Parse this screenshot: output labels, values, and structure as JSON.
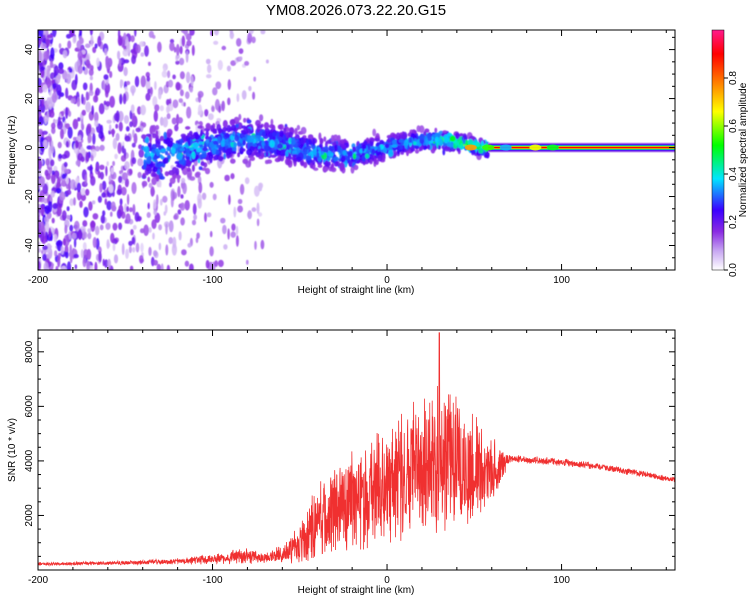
{
  "figure_title": "YM08.2026.073.22.20.G15",
  "chart_data": [
    {
      "type": "heatmap",
      "title": "YM08.2026.073.22.20.G15",
      "xlabel": "Height of straight line (km)",
      "ylabel": "Frequency (Hz)",
      "xlim": [
        -200,
        165
      ],
      "ylim": [
        -50,
        48
      ],
      "x_ticks": [
        -200,
        -100,
        0,
        100
      ],
      "x_tick_labels": [
        "-200",
        "-100",
        "0",
        "100"
      ],
      "y_ticks": [
        -40,
        -20,
        0,
        20,
        40
      ],
      "y_tick_labels": [
        "-40",
        "-20",
        "0",
        "20",
        "40"
      ],
      "colorbar": {
        "label": "Normalized spectral amplitude",
        "range": [
          0.0,
          1.0
        ],
        "ticks": [
          0.0,
          0.2,
          0.4,
          0.6,
          0.8
        ],
        "tick_labels": [
          "0.0",
          "0.2",
          "0.4",
          "0.6",
          "0.8"
        ],
        "colors": [
          "#ffffff",
          "#c7a6f2",
          "#8a2be2",
          "#3b00ff",
          "#00e5ff",
          "#00ff00",
          "#ffff00",
          "#ff7f00",
          "#ff0000",
          "#ff1a8c"
        ]
      },
      "features": {
        "noise_region_x": [
          -200,
          -68
        ],
        "signal_band_x": [
          -140,
          58
        ],
        "signal_band_halfwidth_hz": [
          4,
          15
        ],
        "carrier_x": [
          58,
          165
        ],
        "carrier_frequency_hz": 0,
        "carrier_amplitude": 0.9
      }
    },
    {
      "type": "line",
      "title": "",
      "xlabel": "Height of straight line (km)",
      "ylabel": "SNR (10 * v/v)",
      "xlim": [
        -200,
        165
      ],
      "ylim": [
        0,
        8800
      ],
      "x_ticks": [
        -200,
        -100,
        0,
        100
      ],
      "x_tick_labels": [
        "-200",
        "-100",
        "0",
        "100"
      ],
      "y_ticks": [
        2000,
        4000,
        6000,
        8000
      ],
      "y_tick_labels": [
        "2000",
        "4000",
        "6000",
        "8000"
      ],
      "series": [
        {
          "name": "SNR",
          "color": "#f03030",
          "envelope": {
            "x": [
              -200,
              -160,
              -120,
              -100,
              -90,
              -80,
              -70,
              -60,
              -50,
              -45,
              -40,
              -30,
              -20,
              -10,
              0,
              10,
              20,
              25,
              30,
              35,
              40,
              50,
              60,
              68,
              70,
              80,
              100,
              120,
              140,
              165
            ],
            "mean": [
              220,
              250,
              320,
              400,
              480,
              520,
              450,
              600,
              900,
              1300,
              1800,
              2200,
              2500,
              2800,
              3100,
              3500,
              3800,
              4000,
              4200,
              4100,
              4000,
              3700,
              3600,
              3900,
              4100,
              4050,
              3950,
              3800,
              3600,
              3300
            ],
            "spread": [
              60,
              80,
              120,
              200,
              300,
              350,
              200,
              350,
              800,
              1200,
              1500,
              1800,
              2000,
              2200,
              2400,
              2600,
              2800,
              3100,
              3400,
              3000,
              2700,
              2300,
              1500,
              400,
              180,
              150,
              140,
              140,
              140,
              120
            ]
          },
          "peak": {
            "x": 30,
            "y": 8700
          }
        }
      ]
    }
  ]
}
